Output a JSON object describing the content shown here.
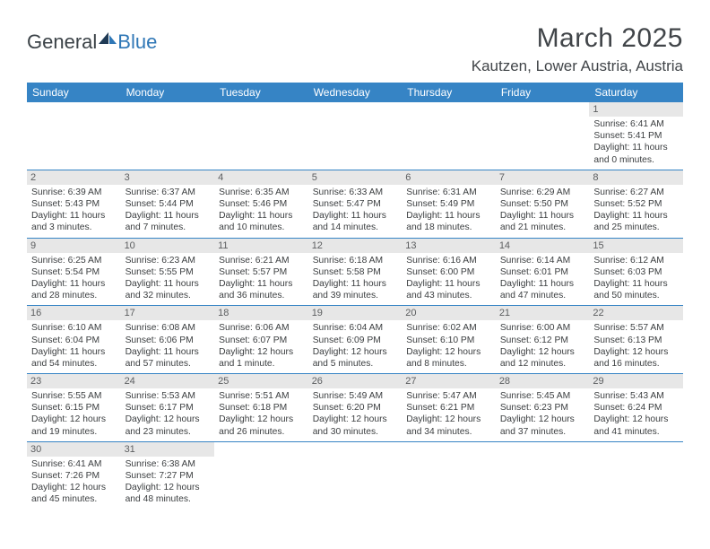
{
  "logo": {
    "text_general": "General",
    "text_blue": "Blue"
  },
  "title": "March 2025",
  "location": "Kautzen, Lower Austria, Austria",
  "colors": {
    "header_bg": "#3684c5",
    "header_fg": "#ffffff",
    "daynum_bg": "#e7e7e7",
    "border": "#3684c5",
    "text": "#333537"
  },
  "weekday_headers": [
    "Sunday",
    "Monday",
    "Tuesday",
    "Wednesday",
    "Thursday",
    "Friday",
    "Saturday"
  ],
  "weeks": [
    [
      null,
      null,
      null,
      null,
      null,
      null,
      {
        "n": "1",
        "sunrise": "Sunrise: 6:41 AM",
        "sunset": "Sunset: 5:41 PM",
        "dl1": "Daylight: 11 hours",
        "dl2": "and 0 minutes."
      }
    ],
    [
      {
        "n": "2",
        "sunrise": "Sunrise: 6:39 AM",
        "sunset": "Sunset: 5:43 PM",
        "dl1": "Daylight: 11 hours",
        "dl2": "and 3 minutes."
      },
      {
        "n": "3",
        "sunrise": "Sunrise: 6:37 AM",
        "sunset": "Sunset: 5:44 PM",
        "dl1": "Daylight: 11 hours",
        "dl2": "and 7 minutes."
      },
      {
        "n": "4",
        "sunrise": "Sunrise: 6:35 AM",
        "sunset": "Sunset: 5:46 PM",
        "dl1": "Daylight: 11 hours",
        "dl2": "and 10 minutes."
      },
      {
        "n": "5",
        "sunrise": "Sunrise: 6:33 AM",
        "sunset": "Sunset: 5:47 PM",
        "dl1": "Daylight: 11 hours",
        "dl2": "and 14 minutes."
      },
      {
        "n": "6",
        "sunrise": "Sunrise: 6:31 AM",
        "sunset": "Sunset: 5:49 PM",
        "dl1": "Daylight: 11 hours",
        "dl2": "and 18 minutes."
      },
      {
        "n": "7",
        "sunrise": "Sunrise: 6:29 AM",
        "sunset": "Sunset: 5:50 PM",
        "dl1": "Daylight: 11 hours",
        "dl2": "and 21 minutes."
      },
      {
        "n": "8",
        "sunrise": "Sunrise: 6:27 AM",
        "sunset": "Sunset: 5:52 PM",
        "dl1": "Daylight: 11 hours",
        "dl2": "and 25 minutes."
      }
    ],
    [
      {
        "n": "9",
        "sunrise": "Sunrise: 6:25 AM",
        "sunset": "Sunset: 5:54 PM",
        "dl1": "Daylight: 11 hours",
        "dl2": "and 28 minutes."
      },
      {
        "n": "10",
        "sunrise": "Sunrise: 6:23 AM",
        "sunset": "Sunset: 5:55 PM",
        "dl1": "Daylight: 11 hours",
        "dl2": "and 32 minutes."
      },
      {
        "n": "11",
        "sunrise": "Sunrise: 6:21 AM",
        "sunset": "Sunset: 5:57 PM",
        "dl1": "Daylight: 11 hours",
        "dl2": "and 36 minutes."
      },
      {
        "n": "12",
        "sunrise": "Sunrise: 6:18 AM",
        "sunset": "Sunset: 5:58 PM",
        "dl1": "Daylight: 11 hours",
        "dl2": "and 39 minutes."
      },
      {
        "n": "13",
        "sunrise": "Sunrise: 6:16 AM",
        "sunset": "Sunset: 6:00 PM",
        "dl1": "Daylight: 11 hours",
        "dl2": "and 43 minutes."
      },
      {
        "n": "14",
        "sunrise": "Sunrise: 6:14 AM",
        "sunset": "Sunset: 6:01 PM",
        "dl1": "Daylight: 11 hours",
        "dl2": "and 47 minutes."
      },
      {
        "n": "15",
        "sunrise": "Sunrise: 6:12 AM",
        "sunset": "Sunset: 6:03 PM",
        "dl1": "Daylight: 11 hours",
        "dl2": "and 50 minutes."
      }
    ],
    [
      {
        "n": "16",
        "sunrise": "Sunrise: 6:10 AM",
        "sunset": "Sunset: 6:04 PM",
        "dl1": "Daylight: 11 hours",
        "dl2": "and 54 minutes."
      },
      {
        "n": "17",
        "sunrise": "Sunrise: 6:08 AM",
        "sunset": "Sunset: 6:06 PM",
        "dl1": "Daylight: 11 hours",
        "dl2": "and 57 minutes."
      },
      {
        "n": "18",
        "sunrise": "Sunrise: 6:06 AM",
        "sunset": "Sunset: 6:07 PM",
        "dl1": "Daylight: 12 hours",
        "dl2": "and 1 minute."
      },
      {
        "n": "19",
        "sunrise": "Sunrise: 6:04 AM",
        "sunset": "Sunset: 6:09 PM",
        "dl1": "Daylight: 12 hours",
        "dl2": "and 5 minutes."
      },
      {
        "n": "20",
        "sunrise": "Sunrise: 6:02 AM",
        "sunset": "Sunset: 6:10 PM",
        "dl1": "Daylight: 12 hours",
        "dl2": "and 8 minutes."
      },
      {
        "n": "21",
        "sunrise": "Sunrise: 6:00 AM",
        "sunset": "Sunset: 6:12 PM",
        "dl1": "Daylight: 12 hours",
        "dl2": "and 12 minutes."
      },
      {
        "n": "22",
        "sunrise": "Sunrise: 5:57 AM",
        "sunset": "Sunset: 6:13 PM",
        "dl1": "Daylight: 12 hours",
        "dl2": "and 16 minutes."
      }
    ],
    [
      {
        "n": "23",
        "sunrise": "Sunrise: 5:55 AM",
        "sunset": "Sunset: 6:15 PM",
        "dl1": "Daylight: 12 hours",
        "dl2": "and 19 minutes."
      },
      {
        "n": "24",
        "sunrise": "Sunrise: 5:53 AM",
        "sunset": "Sunset: 6:17 PM",
        "dl1": "Daylight: 12 hours",
        "dl2": "and 23 minutes."
      },
      {
        "n": "25",
        "sunrise": "Sunrise: 5:51 AM",
        "sunset": "Sunset: 6:18 PM",
        "dl1": "Daylight: 12 hours",
        "dl2": "and 26 minutes."
      },
      {
        "n": "26",
        "sunrise": "Sunrise: 5:49 AM",
        "sunset": "Sunset: 6:20 PM",
        "dl1": "Daylight: 12 hours",
        "dl2": "and 30 minutes."
      },
      {
        "n": "27",
        "sunrise": "Sunrise: 5:47 AM",
        "sunset": "Sunset: 6:21 PM",
        "dl1": "Daylight: 12 hours",
        "dl2": "and 34 minutes."
      },
      {
        "n": "28",
        "sunrise": "Sunrise: 5:45 AM",
        "sunset": "Sunset: 6:23 PM",
        "dl1": "Daylight: 12 hours",
        "dl2": "and 37 minutes."
      },
      {
        "n": "29",
        "sunrise": "Sunrise: 5:43 AM",
        "sunset": "Sunset: 6:24 PM",
        "dl1": "Daylight: 12 hours",
        "dl2": "and 41 minutes."
      }
    ],
    [
      {
        "n": "30",
        "sunrise": "Sunrise: 6:41 AM",
        "sunset": "Sunset: 7:26 PM",
        "dl1": "Daylight: 12 hours",
        "dl2": "and 45 minutes."
      },
      {
        "n": "31",
        "sunrise": "Sunrise: 6:38 AM",
        "sunset": "Sunset: 7:27 PM",
        "dl1": "Daylight: 12 hours",
        "dl2": "and 48 minutes."
      },
      null,
      null,
      null,
      null,
      null
    ]
  ]
}
